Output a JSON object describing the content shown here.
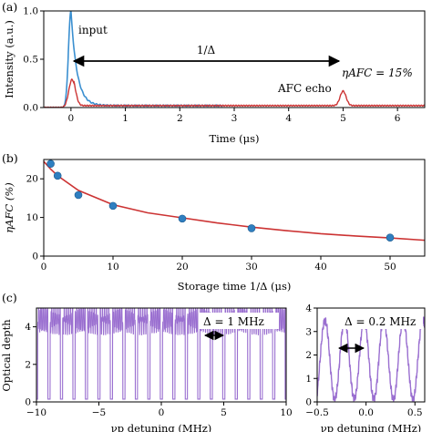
{
  "panels": {
    "a": {
      "label": "(a)",
      "ylabel": "Intensity (a.u.)",
      "xlabel": "Time (μs)",
      "xlim": [
        -0.5,
        6.5
      ],
      "ylim": [
        0,
        1.0
      ],
      "xticks": [
        "0",
        "1",
        "2",
        "3",
        "4",
        "5",
        "6"
      ],
      "yticks": [
        "0.0",
        "0.5",
        "1.0"
      ],
      "ann_input": "input",
      "ann_delta": "1/Δ",
      "ann_echo": "AFC echo",
      "ann_eta": "ηAFC = 15%",
      "colors": {
        "input": "#3a8fd0",
        "echo": "#cc3333"
      }
    },
    "b": {
      "label": "(b)",
      "ylabel": "ηAFC (%)",
      "xlabel": "Storage time 1/Δ (μs)",
      "xlim": [
        0,
        55
      ],
      "ylim": [
        0,
        25
      ],
      "xticks": [
        "0",
        "10",
        "20",
        "30",
        "40",
        "50"
      ],
      "yticks": [
        "0",
        "10",
        "20"
      ]
    },
    "c": {
      "label": "(c)",
      "ylabel": "Optical depth",
      "xlabel_left": "νp detuning (MHz)",
      "xlabel_right": "νp detuning (MHz)",
      "left_xticks": [
        "−10",
        "−5",
        "0",
        "5",
        "10"
      ],
      "left_yticks": [
        "0",
        "2",
        "4"
      ],
      "right_xticks": [
        "−0.5",
        "0.0",
        "0.5"
      ],
      "right_yticks": [
        "0",
        "1",
        "2",
        "3",
        "4"
      ],
      "ann_left": "Δ = 1 MHz",
      "ann_right": "Δ = 0.2 MHz",
      "color": "#9a6fd0"
    }
  },
  "chart_data": [
    {
      "type": "line",
      "panel": "a",
      "xlabel": "Time (μs)",
      "ylabel": "Intensity (a.u.)",
      "xlim": [
        -0.5,
        6.5
      ],
      "ylim": [
        0,
        1.0
      ],
      "series": [
        {
          "name": "input",
          "x": [
            -0.5,
            -0.1,
            0.0,
            0.1,
            0.3,
            1.0,
            2.8
          ],
          "y": [
            0.0,
            0.1,
            1.0,
            0.3,
            0.05,
            0.02,
            0.02
          ]
        },
        {
          "name": "AFC echo",
          "x": [
            -0.5,
            0.0,
            0.1,
            0.3,
            4.9,
            5.0,
            5.1,
            6.5
          ],
          "y": [
            0.0,
            0.29,
            0.1,
            0.02,
            0.02,
            0.15,
            0.02,
            0.0
          ]
        }
      ]
    },
    {
      "type": "scatter",
      "panel": "b",
      "xlabel": "Storage time 1/Δ (μs)",
      "ylabel": "ηAFC (%)",
      "xlim": [
        0,
        55
      ],
      "ylim": [
        0,
        25
      ],
      "x": [
        1,
        2,
        5,
        10,
        20,
        30,
        50
      ],
      "y": [
        23.9,
        20.8,
        15.8,
        13.0,
        9.7,
        7.2,
        4.8
      ],
      "fit": {
        "x": [
          0,
          1,
          2,
          5,
          10,
          15,
          20,
          25,
          30,
          35,
          40,
          45,
          50,
          55
        ],
        "y": [
          24.5,
          22.5,
          20.8,
          17.0,
          13.3,
          11.2,
          9.9,
          8.6,
          7.5,
          6.6,
          5.8,
          5.2,
          4.7,
          4.1
        ]
      }
    },
    {
      "type": "line",
      "panel": "c-left",
      "xlabel": "νp detuning (MHz)",
      "ylabel": "Optical depth",
      "xlim": [
        -10,
        10
      ],
      "ylim": [
        0,
        5
      ],
      "comb_spacing_MHz": 1.0
    },
    {
      "type": "line",
      "panel": "c-right",
      "xlabel": "νp detuning (MHz)",
      "xlim": [
        -0.5,
        0.6
      ],
      "ylim": [
        0,
        4
      ],
      "comb_spacing_MHz": 0.2
    }
  ]
}
